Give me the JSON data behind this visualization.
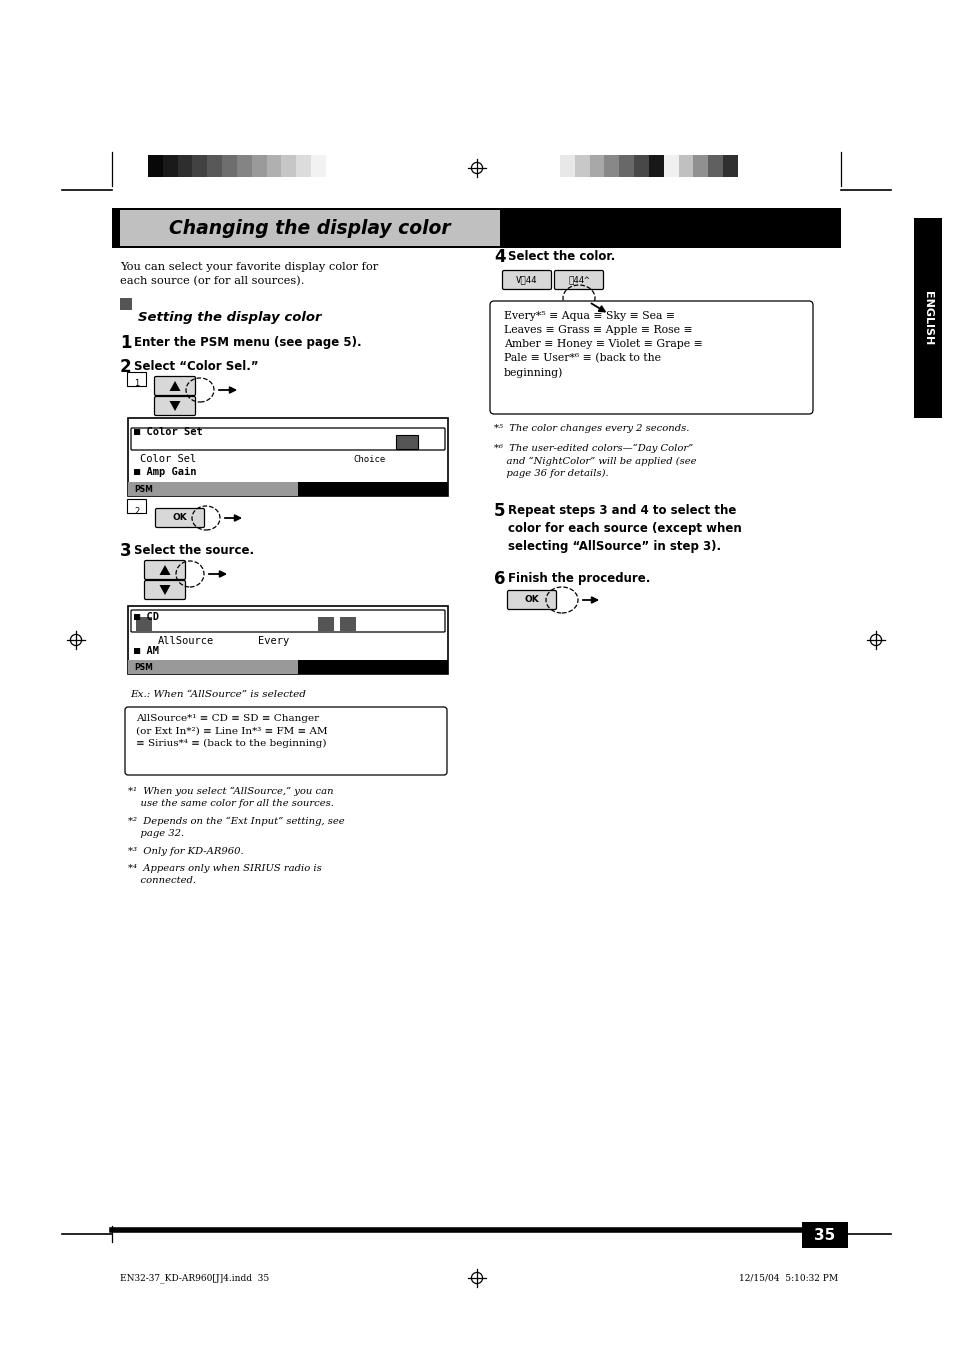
{
  "bg_color": "#ffffff",
  "fig_w": 9.54,
  "fig_h": 13.51,
  "title": "Changing the display color",
  "subtitle": "You can select your favorite display color for\neach source (or for all sources).",
  "section_title": "Setting the display color",
  "step1": "Enter the PSM menu (see page 5).",
  "step2": "Select “Color Sel.”",
  "step3": "Select the source.",
  "step4": "Select the color.",
  "step5": "Repeat steps 3 and 4 to select the\ncolor for each source (except when\nselecting “AllSource” in step 3).",
  "step6": "Finish the procedure.",
  "allsource_note": "AllSource*¹ ≡ CD ≡ SD ≡ Changer\n(or Ext In*²) ≡ Line In*³ ≡ FM ≡ AM\n≡ Sirius*⁴ ≡ (back to the beginning)",
  "color_options": "Every*⁵ ≡ Aqua ≡ Sky ≡ Sea ≡\nLeaves ≡ Grass ≡ Apple ≡ Rose ≡\nAmber ≡ Honey ≡ Violet ≡ Grape ≡\nPale ≡ User*⁶ ≡ (back to the\nbeginning)",
  "note5": "*⁵  The color changes every 2 seconds.",
  "note6": "*⁶  The user-edited colors—“Day Color”\n    and “NightColor” will be applied (see\n    page 36 for details).",
  "footnotes": [
    "*¹  When you select “AllSource,” you can\n    use the same color for all the sources.",
    "*²  Depends on the “Ext Input” setting, see\n    page 32.",
    "*³  Only for KD-AR960.",
    "*⁴  Appears only when SIRIUS radio is\n    connected."
  ],
  "ex_note": "Ex.: When “AllSource” is selected",
  "english_label": "ENGLISH",
  "page_num": "35",
  "footer_left": "EN32-37_KD-AR960[J]4.indd  35",
  "footer_right": "12/15/04  5:10:32 PM",
  "bar_left": [
    "#080808",
    "#1a1a1a",
    "#2e2e2e",
    "#424242",
    "#585858",
    "#6e6e6e",
    "#848484",
    "#9a9a9a",
    "#b0b0b0",
    "#c6c6c6",
    "#dcdcdc",
    "#f2f2f2"
  ],
  "bar_right": [
    "#e8e8e8",
    "#c8c8c8",
    "#a8a8a8",
    "#888888",
    "#686868",
    "#484848",
    "#181818",
    "#f0f0f0",
    "#c0c0c0",
    "#909090",
    "#606060",
    "#303030"
  ]
}
